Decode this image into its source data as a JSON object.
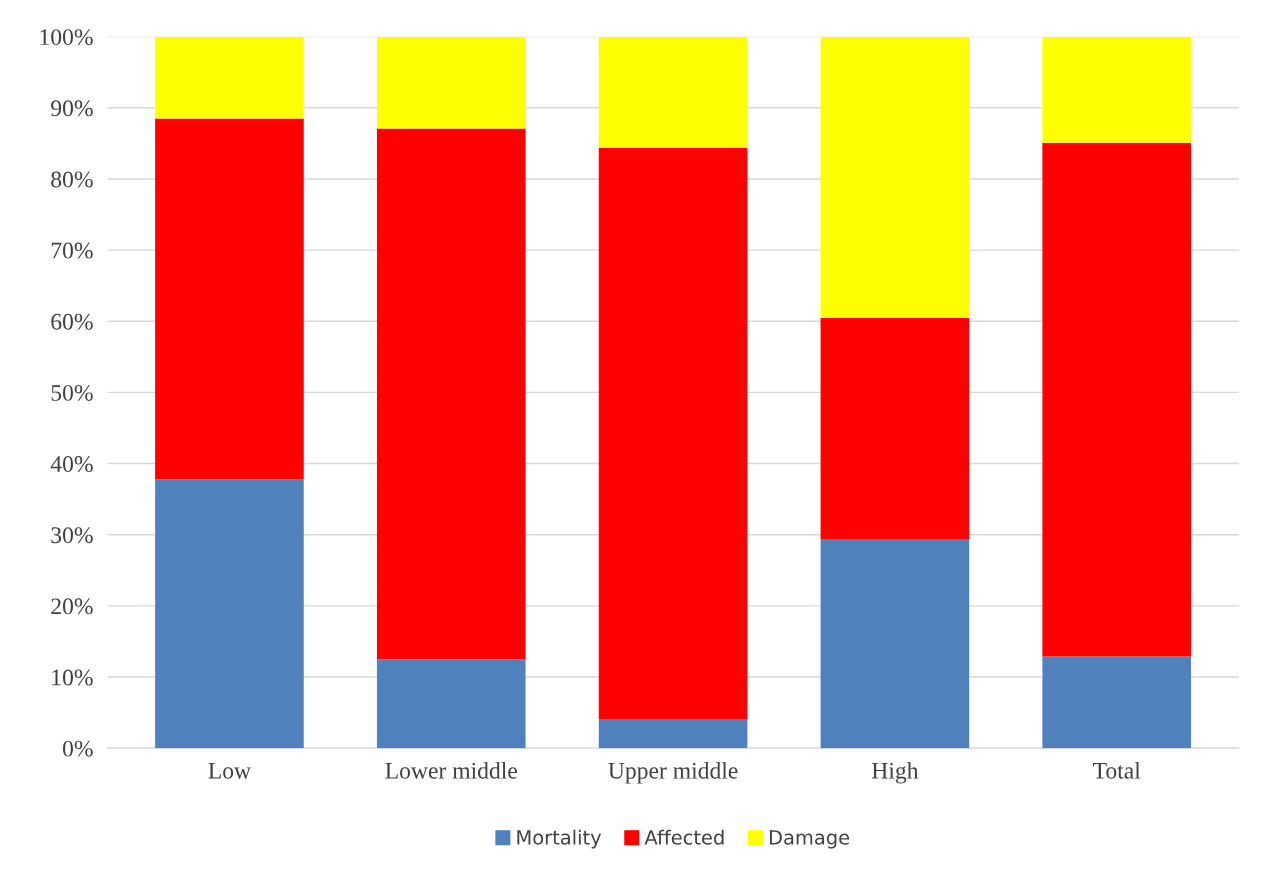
{
  "chart_data": {
    "type": "bar",
    "stacked": true,
    "categories": [
      "Low",
      "Lower middle",
      "Upper middle",
      "High",
      "Total"
    ],
    "series": [
      {
        "name": "Mortality",
        "color": "#4f81bd",
        "values": [
          37.8,
          12.5,
          4.1,
          29.4,
          12.9
        ]
      },
      {
        "name": "Affected",
        "color": "#ff0000",
        "values": [
          50.7,
          74.6,
          80.3,
          31.1,
          72.2
        ]
      },
      {
        "name": "Damage",
        "color": "#ffff00",
        "values": [
          11.5,
          12.9,
          15.6,
          39.5,
          14.9
        ]
      }
    ],
    "ylim": [
      0,
      100
    ],
    "yticks": [
      {
        "value": 0,
        "label": "0%"
      },
      {
        "value": 10,
        "label": "10%"
      },
      {
        "value": 20,
        "label": "20%"
      },
      {
        "value": 30,
        "label": "30%"
      },
      {
        "value": 40,
        "label": "40%"
      },
      {
        "value": 50,
        "label": "50%"
      },
      {
        "value": 60,
        "label": "60%"
      },
      {
        "value": 70,
        "label": "70%"
      },
      {
        "value": 80,
        "label": "80%"
      },
      {
        "value": 90,
        "label": "90%"
      },
      {
        "value": 100,
        "label": "100%"
      }
    ],
    "grid": "y",
    "legend": "bottom"
  }
}
